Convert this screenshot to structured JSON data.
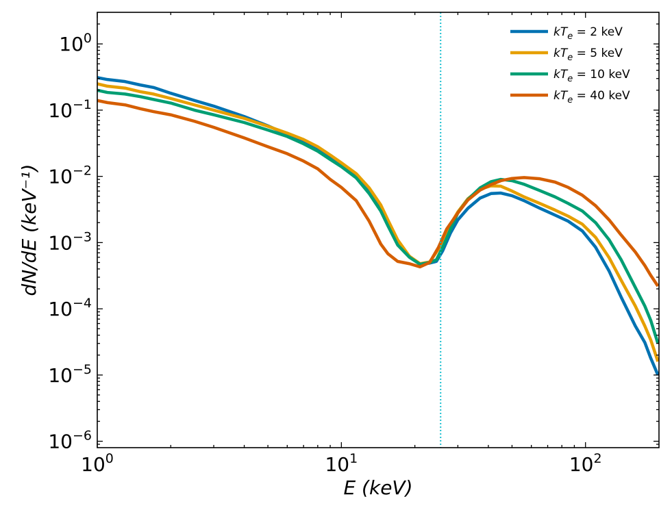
{
  "chart_data": {
    "type": "line",
    "xscale": "log",
    "yscale": "log",
    "xlim": [
      1,
      200
    ],
    "ylim": [
      8e-07,
      3
    ],
    "xlabel": "E (keV)",
    "ylabel": "dN/dE (keV⁻¹)",
    "x_ticks": [
      {
        "value": 1,
        "label": "10",
        "exp": "0"
      },
      {
        "value": 10,
        "label": "10",
        "exp": "1"
      },
      {
        "value": 100,
        "label": "10",
        "exp": "2"
      }
    ],
    "y_ticks": [
      {
        "value": 1,
        "label": "10",
        "exp": "0"
      },
      {
        "value": 0.1,
        "label": "10",
        "exp": "−1"
      },
      {
        "value": 0.01,
        "label": "10",
        "exp": "−2"
      },
      {
        "value": 0.001,
        "label": "10",
        "exp": "−3"
      },
      {
        "value": 0.0001,
        "label": "10",
        "exp": "−4"
      },
      {
        "value": 1e-05,
        "label": "10",
        "exp": "−5"
      },
      {
        "value": 1e-06,
        "label": "10",
        "exp": "−6"
      }
    ],
    "vline": {
      "x": 25.5,
      "color": "#17becf",
      "style": "dotted"
    },
    "series": [
      {
        "name": "kTe = 2 keV",
        "legend_parts": [
          "k",
          "T",
          "e",
          " = 2 keV"
        ],
        "color": "#0072b2",
        "points": [
          [
            1.0,
            0.31
          ],
          [
            1.1,
            0.29
          ],
          [
            1.3,
            0.27
          ],
          [
            1.5,
            0.24
          ],
          [
            1.7,
            0.22
          ],
          [
            2.0,
            0.18
          ],
          [
            2.5,
            0.14
          ],
          [
            3.0,
            0.115
          ],
          [
            4.0,
            0.08
          ],
          [
            5.0,
            0.058
          ],
          [
            6.0,
            0.043
          ],
          [
            7.0,
            0.033
          ],
          [
            8.0,
            0.025
          ],
          [
            9.0,
            0.019
          ],
          [
            10.0,
            0.015
          ],
          [
            11.5,
            0.01
          ],
          [
            13.0,
            0.0058
          ],
          [
            14.5,
            0.0031
          ],
          [
            15.5,
            0.0019
          ],
          [
            17.0,
            0.00098
          ],
          [
            19.0,
            0.00062
          ],
          [
            21.0,
            0.00047
          ],
          [
            23.0,
            0.00049
          ],
          [
            24.5,
            0.00052
          ],
          [
            26.0,
            0.00075
          ],
          [
            28.0,
            0.0014
          ],
          [
            30.0,
            0.0022
          ],
          [
            33.0,
            0.0033
          ],
          [
            37.0,
            0.0047
          ],
          [
            41.0,
            0.0055
          ],
          [
            45.0,
            0.0056
          ],
          [
            50.0,
            0.0051
          ],
          [
            56.0,
            0.0043
          ],
          [
            65.0,
            0.0033
          ],
          [
            75.0,
            0.0026
          ],
          [
            85.0,
            0.0021
          ],
          [
            97.0,
            0.0015
          ],
          [
            110.0,
            0.00085
          ],
          [
            125.0,
            0.00037
          ],
          [
            140.0,
            0.00015
          ],
          [
            160.0,
            5.5e-05
          ],
          [
            175.0,
            3.1e-05
          ],
          [
            185.0,
            1.8e-05
          ],
          [
            198.0,
            1e-05
          ]
        ]
      },
      {
        "name": "kTe = 5 keV",
        "legend_parts": [
          "k",
          "T",
          "e",
          " = 5 keV"
        ],
        "color": "#e69f00",
        "points": [
          [
            1.0,
            0.25
          ],
          [
            1.1,
            0.23
          ],
          [
            1.3,
            0.215
          ],
          [
            1.5,
            0.19
          ],
          [
            1.7,
            0.175
          ],
          [
            2.0,
            0.15
          ],
          [
            2.5,
            0.12
          ],
          [
            3.0,
            0.1
          ],
          [
            4.0,
            0.075
          ],
          [
            5.0,
            0.057
          ],
          [
            6.0,
            0.045
          ],
          [
            7.0,
            0.036
          ],
          [
            8.0,
            0.028
          ],
          [
            9.0,
            0.021
          ],
          [
            10.0,
            0.016
          ],
          [
            11.5,
            0.011
          ],
          [
            13.0,
            0.0067
          ],
          [
            14.5,
            0.0037
          ],
          [
            15.5,
            0.0022
          ],
          [
            17.0,
            0.0011
          ],
          [
            19.0,
            0.00062
          ],
          [
            21.0,
            0.00048
          ],
          [
            23.0,
            0.00051
          ],
          [
            25.0,
            0.0008
          ],
          [
            27.0,
            0.0015
          ],
          [
            30.0,
            0.0029
          ],
          [
            33.0,
            0.0046
          ],
          [
            37.0,
            0.0064
          ],
          [
            41.0,
            0.0072
          ],
          [
            45.0,
            0.0071
          ],
          [
            50.0,
            0.006
          ],
          [
            56.0,
            0.0049
          ],
          [
            65.0,
            0.0039
          ],
          [
            75.0,
            0.0031
          ],
          [
            85.0,
            0.0025
          ],
          [
            97.0,
            0.0019
          ],
          [
            110.0,
            0.0012
          ],
          [
            125.0,
            0.00059
          ],
          [
            140.0,
            0.00027
          ],
          [
            160.0,
            0.00011
          ],
          [
            175.0,
            5.5e-05
          ],
          [
            185.0,
            3.4e-05
          ],
          [
            198.0,
            1.6e-05
          ]
        ]
      },
      {
        "name": "kTe = 10 keV",
        "legend_parts": [
          "k",
          "T",
          "e",
          " = 10 keV"
        ],
        "color": "#009e73",
        "points": [
          [
            1.0,
            0.2
          ],
          [
            1.1,
            0.185
          ],
          [
            1.3,
            0.175
          ],
          [
            1.5,
            0.16
          ],
          [
            1.7,
            0.145
          ],
          [
            2.0,
            0.128
          ],
          [
            2.5,
            0.1
          ],
          [
            3.0,
            0.085
          ],
          [
            4.0,
            0.065
          ],
          [
            5.0,
            0.05
          ],
          [
            6.0,
            0.04
          ],
          [
            7.0,
            0.031
          ],
          [
            8.0,
            0.024
          ],
          [
            9.0,
            0.018
          ],
          [
            10.0,
            0.014
          ],
          [
            11.5,
            0.0095
          ],
          [
            13.0,
            0.0055
          ],
          [
            14.5,
            0.003
          ],
          [
            15.5,
            0.0018
          ],
          [
            17.0,
            0.00092
          ],
          [
            19.0,
            0.0006
          ],
          [
            21.0,
            0.00047
          ],
          [
            23.0,
            0.0005
          ],
          [
            24.5,
            0.00055
          ],
          [
            26.0,
            0.00085
          ],
          [
            28.0,
            0.0016
          ],
          [
            30.0,
            0.0028
          ],
          [
            33.0,
            0.0045
          ],
          [
            37.0,
            0.0067
          ],
          [
            41.0,
            0.0083
          ],
          [
            45.0,
            0.009
          ],
          [
            50.0,
            0.0086
          ],
          [
            56.0,
            0.0076
          ],
          [
            65.0,
            0.0061
          ],
          [
            75.0,
            0.0049
          ],
          [
            85.0,
            0.0039
          ],
          [
            97.0,
            0.003
          ],
          [
            110.0,
            0.002
          ],
          [
            125.0,
            0.0011
          ],
          [
            140.0,
            0.00055
          ],
          [
            160.0,
            0.00021
          ],
          [
            175.0,
            0.00011
          ],
          [
            185.0,
            6.7e-05
          ],
          [
            198.0,
            3e-05
          ]
        ]
      },
      {
        "name": "kTe = 40 keV",
        "legend_parts": [
          "k",
          "T",
          "e",
          " = 40 keV"
        ],
        "color": "#d55e00",
        "points": [
          [
            1.0,
            0.14
          ],
          [
            1.1,
            0.13
          ],
          [
            1.3,
            0.12
          ],
          [
            1.5,
            0.105
          ],
          [
            1.7,
            0.095
          ],
          [
            2.0,
            0.085
          ],
          [
            2.5,
            0.068
          ],
          [
            3.0,
            0.055
          ],
          [
            4.0,
            0.038
          ],
          [
            5.0,
            0.028
          ],
          [
            6.0,
            0.022
          ],
          [
            7.0,
            0.017
          ],
          [
            8.0,
            0.013
          ],
          [
            9.0,
            0.009
          ],
          [
            10.0,
            0.0068
          ],
          [
            11.5,
            0.0043
          ],
          [
            13.0,
            0.0021
          ],
          [
            14.5,
            0.00095
          ],
          [
            15.5,
            0.00068
          ],
          [
            17.0,
            0.00052
          ],
          [
            19.0,
            0.00048
          ],
          [
            21.0,
            0.00043
          ],
          [
            23.0,
            0.0005
          ],
          [
            25.0,
            0.00085
          ],
          [
            27.0,
            0.0016
          ],
          [
            30.0,
            0.0028
          ],
          [
            33.0,
            0.0044
          ],
          [
            37.0,
            0.0062
          ],
          [
            41.0,
            0.0075
          ],
          [
            45.0,
            0.0086
          ],
          [
            50.0,
            0.0093
          ],
          [
            56.0,
            0.0096
          ],
          [
            65.0,
            0.0092
          ],
          [
            75.0,
            0.0082
          ],
          [
            85.0,
            0.0068
          ],
          [
            97.0,
            0.0052
          ],
          [
            110.0,
            0.0036
          ],
          [
            125.0,
            0.0022
          ],
          [
            140.0,
            0.0013
          ],
          [
            160.0,
            0.00072
          ],
          [
            175.0,
            0.00045
          ],
          [
            185.0,
            0.00032
          ],
          [
            198.0,
            0.00022
          ]
        ]
      }
    ]
  }
}
